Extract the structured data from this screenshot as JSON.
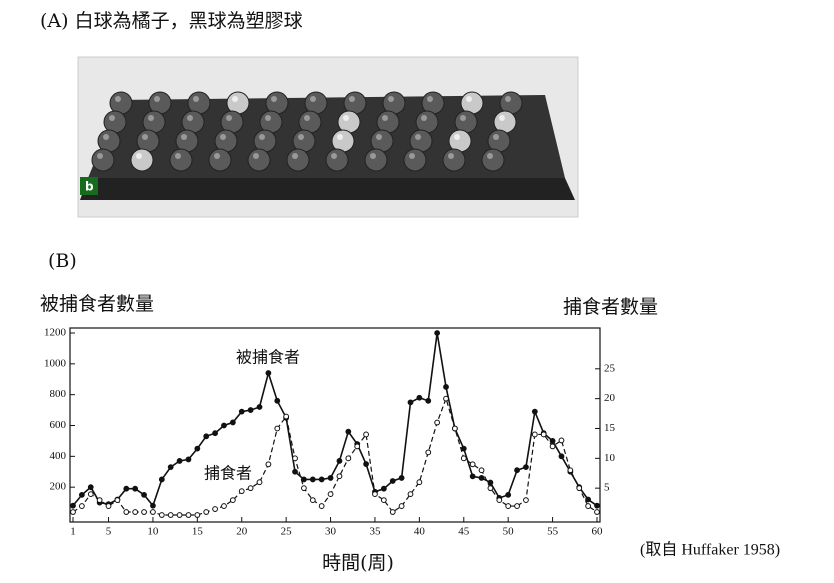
{
  "panel_a": {
    "caption": "(A) 白球為橘子，黑球為塑膠球",
    "photo_label": "b"
  },
  "chart_data": {
    "type": "line",
    "panel_label": "(B)",
    "y_label": "被捕食者數量",
    "y2_label": "捕食者數量",
    "x_label": "時間(周)",
    "source": "(取自 Huffaker 1958)",
    "x": [
      1,
      2,
      3,
      4,
      5,
      6,
      7,
      8,
      9,
      10,
      11,
      12,
      13,
      14,
      15,
      16,
      17,
      18,
      19,
      20,
      21,
      22,
      23,
      24,
      25,
      26,
      27,
      28,
      29,
      30,
      31,
      32,
      33,
      34,
      35,
      36,
      37,
      38,
      39,
      40,
      41,
      42,
      43,
      44,
      45,
      46,
      47,
      48,
      49,
      50,
      51,
      52,
      53,
      54,
      55,
      56,
      57,
      58,
      59,
      60
    ],
    "series": [
      {
        "name": "被捕食者",
        "color": "#111111",
        "style": "solid",
        "values": [
          80,
          150,
          200,
          100,
          90,
          120,
          190,
          190,
          150,
          80,
          250,
          330,
          370,
          380,
          450,
          530,
          550,
          600,
          620,
          690,
          700,
          720,
          940,
          760,
          650,
          300,
          250,
          250,
          250,
          260,
          370,
          560,
          480,
          350,
          170,
          190,
          240,
          260,
          750,
          780,
          760,
          1200,
          850,
          580,
          450,
          270,
          260,
          230,
          130,
          150,
          310,
          330,
          690,
          550,
          500,
          400,
          300,
          200,
          120,
          80
        ]
      },
      {
        "name": "捕食者",
        "color": "#111111",
        "style": "dashed",
        "axis": "y2",
        "values": [
          1,
          2,
          4,
          3,
          2,
          3,
          1,
          1,
          1,
          1,
          0.5,
          0.5,
          0.5,
          0.5,
          0.5,
          1,
          1.5,
          2,
          3,
          4.5,
          5,
          6,
          9,
          15,
          17,
          10,
          5,
          3,
          2,
          4,
          7,
          10,
          12,
          14,
          4,
          3,
          1,
          2,
          4,
          6,
          11,
          16,
          20,
          15,
          10,
          9,
          8,
          5,
          3,
          2,
          2,
          3,
          14,
          14,
          12,
          13,
          8,
          5,
          2,
          1
        ]
      }
    ],
    "xlim": [
      1,
      60
    ],
    "xticks": [
      1,
      5,
      10,
      15,
      20,
      25,
      30,
      35,
      40,
      45,
      50,
      55,
      60
    ],
    "ylim": [
      0,
      1200
    ],
    "yticks": [
      200,
      400,
      600,
      800,
      1000,
      1200
    ],
    "y2lim": [
      0,
      31
    ],
    "y2ticks": [
      5,
      10,
      15,
      20,
      25
    ]
  }
}
